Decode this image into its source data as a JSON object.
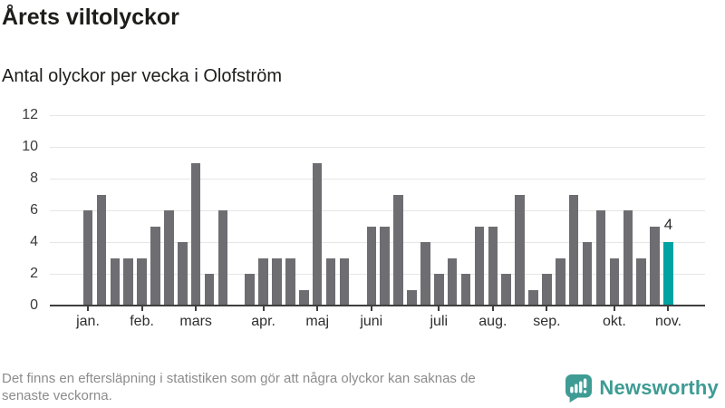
{
  "title": "Årets viltolyckor",
  "subtitle": "Antal olyckor per vecka i Olofström",
  "footer": {
    "line1": "Det finns en eftersläpning i statistiken som gör att några olyckor kan saknas de",
    "line2": "senaste veckorna."
  },
  "logo": {
    "text": "Newsworthy",
    "icon": "newsworthy-bubble-chart-icon"
  },
  "colors": {
    "bar": "#6d6d72",
    "highlight": "#00a2a2",
    "grid": "#e6e6e6",
    "axis": "#3f3f3f",
    "muted_text": "#8c8c8c",
    "logo_teal": "#3e9c94",
    "ink": "#1d1d1b"
  },
  "chart_data": {
    "type": "bar",
    "title": "Årets viltolyckor",
    "subtitle": "Antal olyckor per vecka i Olofström",
    "x_unit": "week (vecka 1–44, jan–nov)",
    "values": [
      6,
      7,
      3,
      3,
      3,
      5,
      6,
      4,
      9,
      2,
      6,
      0,
      2,
      3,
      3,
      3,
      1,
      9,
      3,
      3,
      0,
      5,
      5,
      7,
      1,
      4,
      2,
      3,
      2,
      5,
      5,
      2,
      7,
      1,
      2,
      3,
      7,
      4,
      6,
      3,
      6,
      3,
      5,
      4
    ],
    "week_count": 44,
    "highlight_index": 43,
    "highlight_value": 4,
    "highlight_label": "4",
    "y_ticks": [
      0,
      2,
      4,
      6,
      8,
      10,
      12
    ],
    "ylim": [
      0,
      12
    ],
    "grid": true,
    "legend": "none",
    "month_ticks": [
      {
        "label": "jan.",
        "index": 0
      },
      {
        "label": "feb.",
        "index": 4
      },
      {
        "label": "mars",
        "index": 8
      },
      {
        "label": "apr.",
        "index": 13
      },
      {
        "label": "maj",
        "index": 17
      },
      {
        "label": "juni",
        "index": 21
      },
      {
        "label": "juli",
        "index": 26
      },
      {
        "label": "aug.",
        "index": 30
      },
      {
        "label": "sep.",
        "index": 34
      },
      {
        "label": "okt.",
        "index": 39
      },
      {
        "label": "nov.",
        "index": 43
      }
    ]
  }
}
